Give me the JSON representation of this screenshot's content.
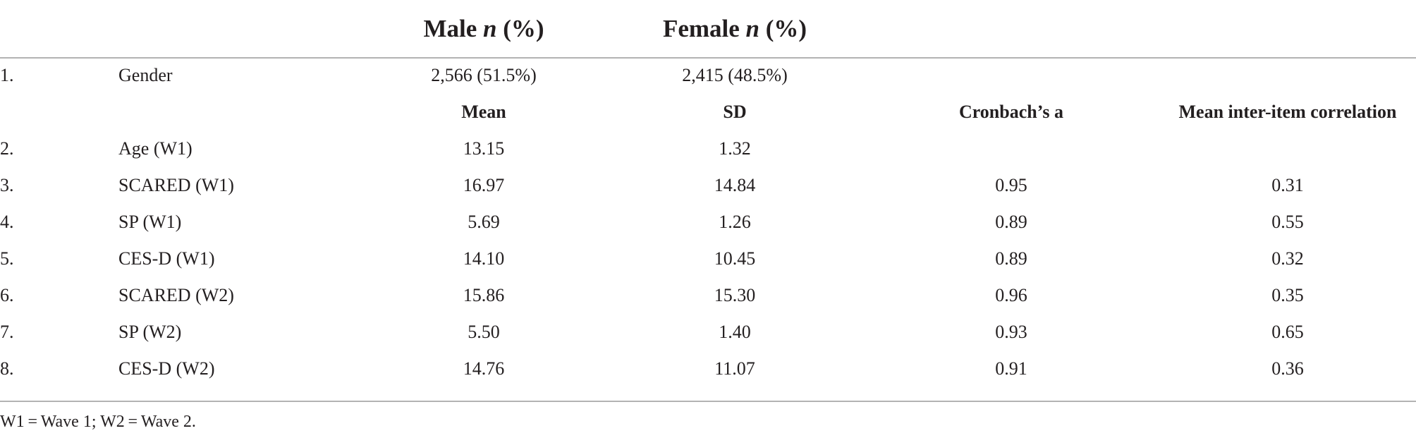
{
  "header": {
    "male": {
      "label": "Male",
      "n": "n",
      "pct": "(%)"
    },
    "female": {
      "label": "Female",
      "n": "n",
      "pct": "(%)"
    }
  },
  "gender_row": {
    "num": "1.",
    "label": "Gender",
    "male": "2,566 (51.5%)",
    "female": "2,415 (48.5%)"
  },
  "subheader": {
    "mean": "Mean",
    "sd": "SD",
    "alpha": "Cronbach’s a",
    "corr": "Mean inter-item correlation"
  },
  "rows": [
    {
      "num": "2.",
      "label": "Age (W1)",
      "mean": "13.15",
      "sd": "1.32",
      "alpha": "",
      "corr": ""
    },
    {
      "num": "3.",
      "label": "SCARED (W1)",
      "mean": "16.97",
      "sd": "14.84",
      "alpha": "0.95",
      "corr": "0.31"
    },
    {
      "num": "4.",
      "label": "SP (W1)",
      "mean": "5.69",
      "sd": "1.26",
      "alpha": "0.89",
      "corr": "0.55"
    },
    {
      "num": "5.",
      "label": "CES-D (W1)",
      "mean": "14.10",
      "sd": "10.45",
      "alpha": "0.89",
      "corr": "0.32"
    },
    {
      "num": "6.",
      "label": "SCARED (W2)",
      "mean": "15.86",
      "sd": "15.30",
      "alpha": "0.96",
      "corr": "0.35"
    },
    {
      "num": "7.",
      "label": "SP (W2)",
      "mean": "5.50",
      "sd": "1.40",
      "alpha": "0.93",
      "corr": "0.65"
    },
    {
      "num": "8.",
      "label": "CES-D (W2)",
      "mean": "14.76",
      "sd": "11.07",
      "alpha": "0.91",
      "corr": "0.36"
    }
  ],
  "footnote": "W1 = Wave 1; W2 = Wave 2."
}
